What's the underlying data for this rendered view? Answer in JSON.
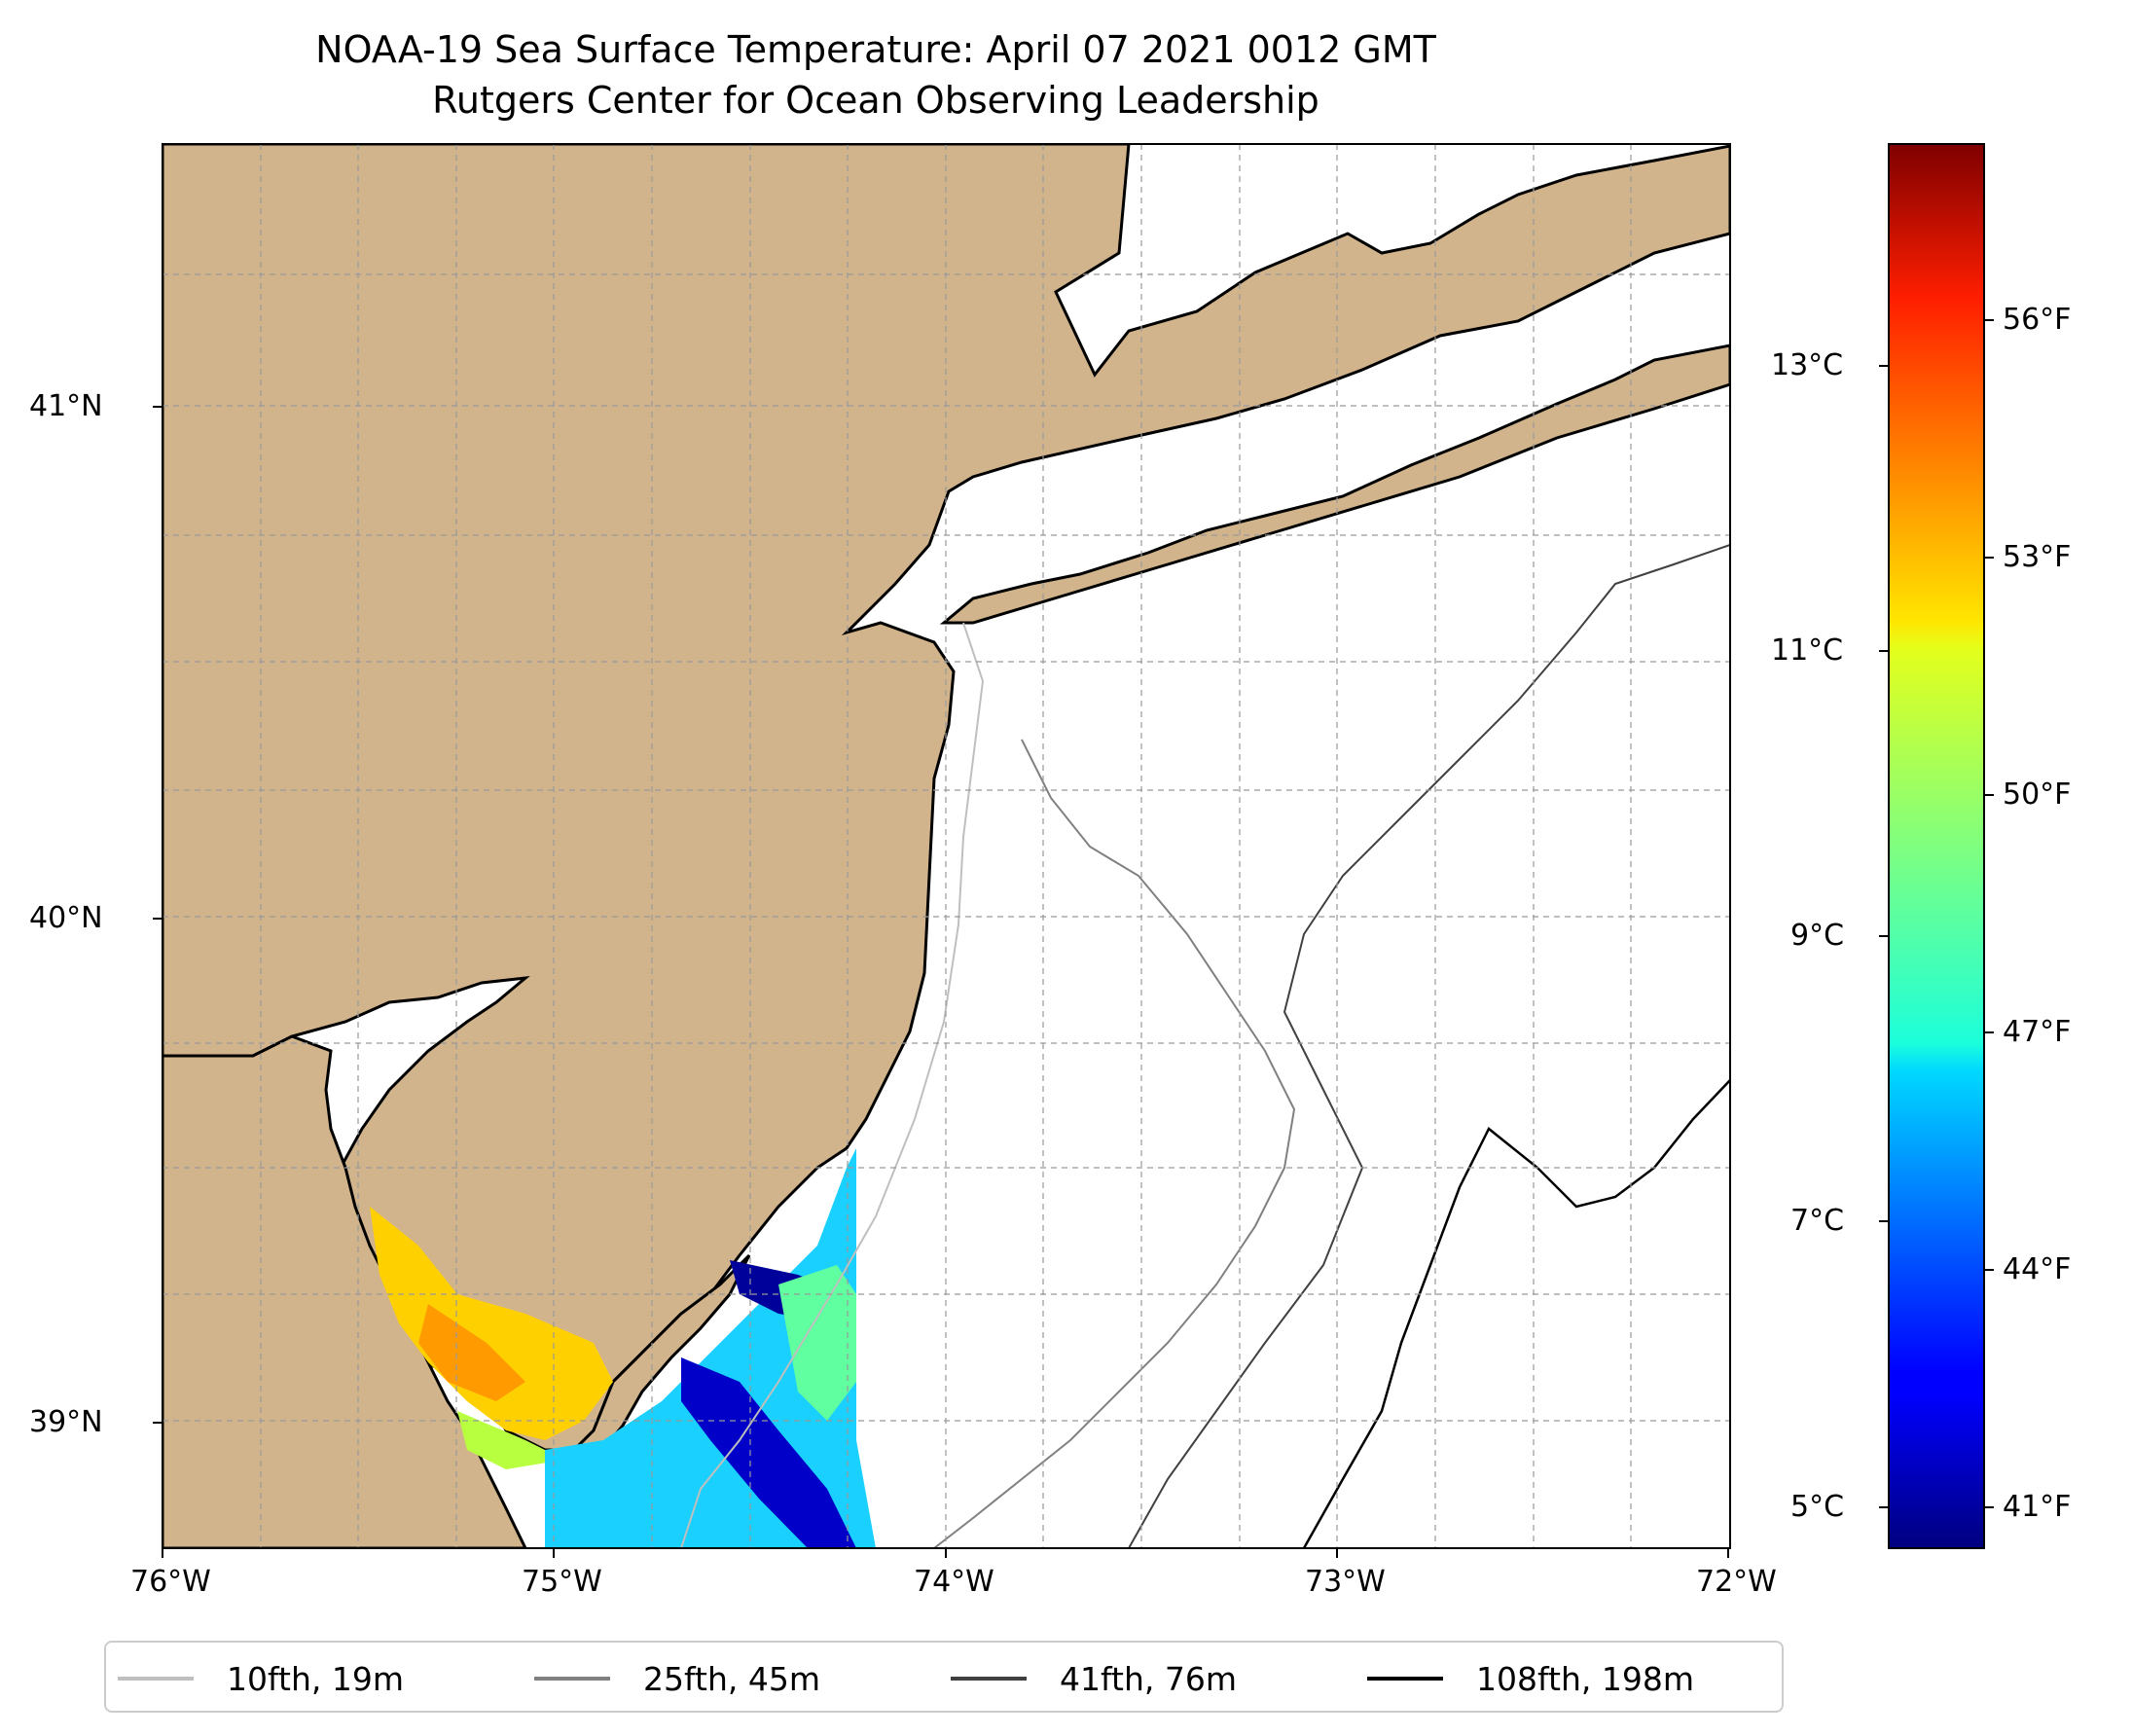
{
  "title": {
    "line1": "NOAA-19 Sea Surface Temperature: April 07 2021 0012 GMT",
    "line2": "Rutgers Center for Ocean Observing Leadership"
  },
  "map": {
    "lon_range": [
      -76,
      -72
    ],
    "lat_range": [
      38.75,
      41.52
    ],
    "lon_ticks": [
      {
        "value": -76,
        "label": "76°W"
      },
      {
        "value": -75,
        "label": "75°W"
      },
      {
        "value": -74,
        "label": "74°W"
      },
      {
        "value": -73,
        "label": "73°W"
      },
      {
        "value": -72,
        "label": "72°W"
      }
    ],
    "lat_ticks": [
      {
        "value": 41,
        "label": "41°N"
      },
      {
        "value": 40,
        "label": "40°N"
      },
      {
        "value": 39,
        "label": "39°N"
      }
    ],
    "grid": true,
    "land_color": "#d2b48c",
    "ocean_color": "#ffffff"
  },
  "colorbar": {
    "colormap": "jet",
    "range_c": [
      4.7,
      14.6
    ],
    "celsius_ticks": [
      {
        "value": 5,
        "label": "5°C"
      },
      {
        "value": 7,
        "label": "7°C"
      },
      {
        "value": 9,
        "label": "9°C"
      },
      {
        "value": 11,
        "label": "11°C"
      },
      {
        "value": 13,
        "label": "13°C"
      }
    ],
    "fahrenheit_ticks": [
      {
        "value": 41,
        "label": "41°F"
      },
      {
        "value": 44,
        "label": "44°F"
      },
      {
        "value": 47,
        "label": "47°F"
      },
      {
        "value": 50,
        "label": "50°F"
      },
      {
        "value": 53,
        "label": "53°F"
      },
      {
        "value": 56,
        "label": "56°F"
      }
    ]
  },
  "legend": {
    "entries": [
      {
        "label": "10fth, 19m",
        "color": "#bfbfbf"
      },
      {
        "label": "25fth, 45m",
        "color": "#808080"
      },
      {
        "label": "41fth, 76m",
        "color": "#404040"
      },
      {
        "label": "108fth, 198m",
        "color": "#000000"
      }
    ]
  }
}
